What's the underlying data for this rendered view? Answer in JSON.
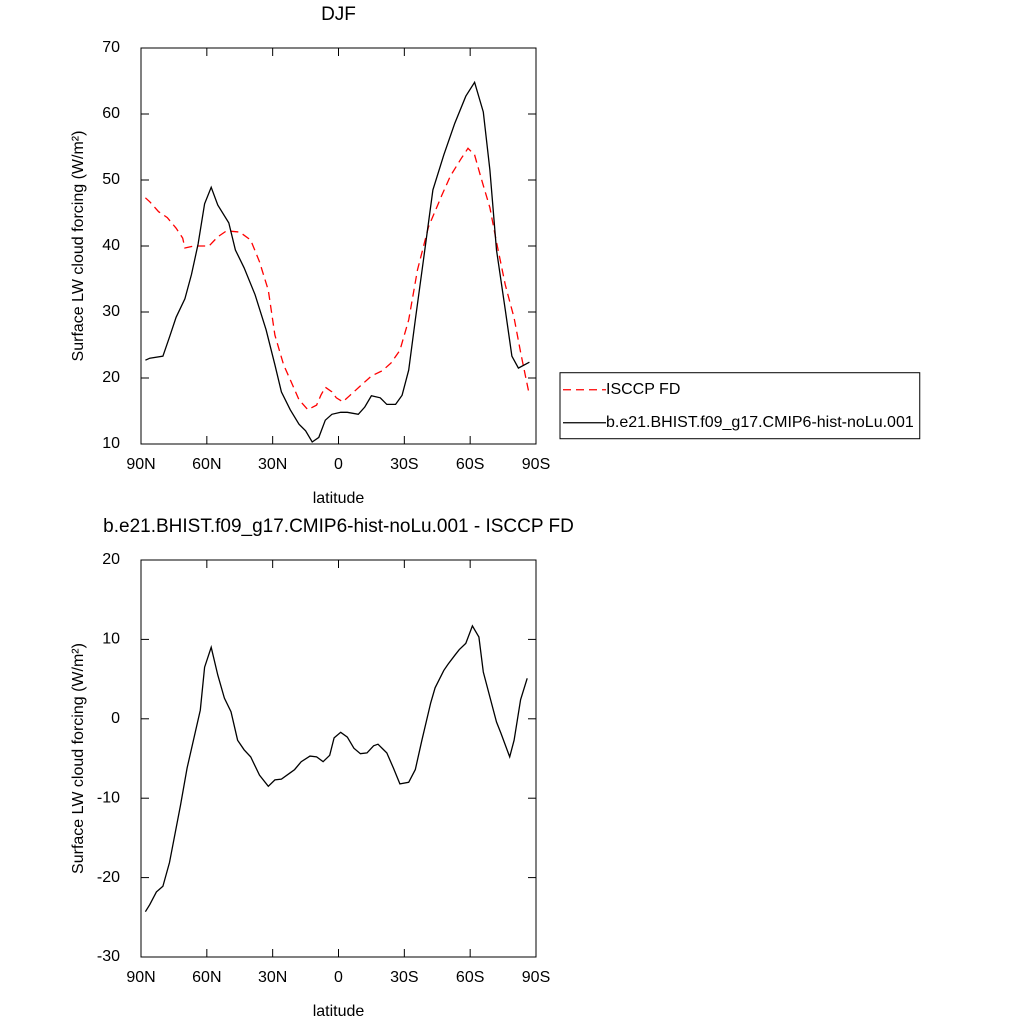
{
  "chart_data": [
    {
      "type": "line",
      "title": "DJF",
      "xlabel": "latitude",
      "ylabel": "Surface LW cloud forcing (W/m²)",
      "xlim": [
        90,
        -90
      ],
      "xticks": [
        {
          "value": 90,
          "label": "90N"
        },
        {
          "value": 60,
          "label": "60N"
        },
        {
          "value": 30,
          "label": "30N"
        },
        0,
        {
          "value": -30,
          "label": "30S"
        },
        {
          "value": -60,
          "label": "60S"
        },
        {
          "value": -90,
          "label": "90S"
        }
      ],
      "ylim": [
        10,
        70
      ],
      "yticks": [
        10,
        20,
        30,
        40,
        50,
        60,
        70
      ],
      "legend": "right",
      "series": [
        {
          "name": "ISCCP FD",
          "color": "#ff0000",
          "dashed": true,
          "x": [
            88,
            86,
            82,
            78,
            74,
            71,
            70,
            66,
            59,
            55,
            51,
            45,
            40,
            36,
            32,
            29,
            25,
            21,
            18,
            14,
            10,
            8,
            6,
            3,
            1,
            -2,
            -5,
            -10,
            -15,
            -20,
            -24,
            -28,
            -32,
            -36,
            -41,
            -47,
            -51,
            -56,
            -59,
            -62,
            -65,
            -69,
            -72,
            -76,
            -80,
            -83,
            -87
          ],
          "values": [
            47.3,
            46.7,
            45.2,
            44.3,
            42.7,
            41.2,
            39.7,
            40,
            40,
            41.4,
            42.3,
            42.1,
            40.9,
            37.6,
            33.3,
            26.5,
            22,
            19,
            16.7,
            15.2,
            15.9,
            17.4,
            18.6,
            17.9,
            17,
            16.4,
            17.3,
            18.8,
            20.3,
            21.1,
            22.3,
            24.2,
            28.8,
            36.4,
            42.9,
            47.6,
            50.6,
            53.3,
            54.8,
            53.8,
            50.3,
            45.8,
            40.6,
            34.1,
            29.1,
            23.9,
            17.4
          ]
        },
        {
          "name": "b.e21.BHIST.f09_g17.CMIP6-hist-noLu.001",
          "color": "#000000",
          "dashed": false,
          "x": [
            88,
            86,
            80,
            77,
            74,
            70,
            67,
            64,
            61,
            58,
            55,
            50,
            47,
            43,
            38,
            33,
            29,
            26,
            22,
            18,
            15,
            12,
            9,
            6,
            3,
            -1,
            -4,
            -9,
            -12,
            -15,
            -19,
            -22,
            -26,
            -29,
            -32,
            -35,
            -39,
            -43,
            -48,
            -53,
            -58,
            -62,
            -66,
            -69,
            -72,
            -76,
            -79,
            -82,
            -87
          ],
          "values": [
            22.7,
            23,
            23.3,
            26.2,
            29.2,
            32,
            35.7,
            40.3,
            46.4,
            48.9,
            46.2,
            43.5,
            39.4,
            36.7,
            32.6,
            27.3,
            22,
            17.9,
            15.2,
            13,
            12,
            10.3,
            11,
            13.6,
            14.5,
            14.8,
            14.8,
            14.5,
            15.6,
            17.3,
            17,
            16,
            16,
            17.4,
            21.2,
            28.8,
            38.6,
            48.5,
            53.8,
            58.6,
            62.7,
            64.8,
            60.3,
            51.5,
            39.4,
            30.3,
            23.3,
            21.5,
            22.4
          ]
        }
      ]
    },
    {
      "type": "line",
      "title": "b.e21.BHIST.f09_g17.CMIP6-hist-noLu.001 - ISCCP FD",
      "xlabel": "latitude",
      "ylabel": "Surface LW cloud forcing (W/m²)",
      "xlim": [
        90,
        -90
      ],
      "xticks": [
        {
          "value": 90,
          "label": "90N"
        },
        {
          "value": 60,
          "label": "60N"
        },
        {
          "value": 30,
          "label": "30N"
        },
        0,
        {
          "value": -30,
          "label": "30S"
        },
        {
          "value": -60,
          "label": "60S"
        },
        {
          "value": -90,
          "label": "90S"
        }
      ],
      "ylim": [
        -30,
        20
      ],
      "yticks": [
        -30,
        -20,
        -10,
        0,
        10,
        20
      ],
      "series": [
        {
          "color": "#000000",
          "dashed": false,
          "x": [
            88,
            86,
            83,
            80,
            77,
            72,
            69,
            63,
            61,
            58,
            55,
            52,
            49,
            46,
            43,
            40,
            36,
            32,
            29,
            26,
            22,
            20,
            17,
            13,
            10,
            7,
            4,
            2,
            -1,
            -4,
            -7,
            -10,
            -13,
            -16,
            -18,
            -22,
            -25,
            -28,
            -32,
            -35,
            -38,
            -42,
            -44,
            -48,
            -50,
            -53,
            -55,
            -58,
            -61,
            -64,
            -66,
            -72,
            -74,
            -78,
            -80,
            -83,
            -86
          ],
          "values": [
            -24.3,
            -23.4,
            -21.8,
            -21.1,
            -18.1,
            -10.9,
            -6.2,
            1.1,
            6.5,
            9,
            5.5,
            2.6,
            0.9,
            -2.7,
            -3.9,
            -4.8,
            -7.1,
            -8.5,
            -7.7,
            -7.6,
            -6.8,
            -6.4,
            -5.4,
            -4.7,
            -4.8,
            -5.4,
            -4.6,
            -2.4,
            -1.7,
            -2.3,
            -3.7,
            -4.4,
            -4.3,
            -3.4,
            -3.2,
            -4.3,
            -6.2,
            -8.2,
            -8,
            -6.4,
            -2.7,
            2,
            3.9,
            6.1,
            6.9,
            8,
            8.7,
            9.5,
            11.7,
            10.3,
            5.9,
            -0.4,
            -1.8,
            -4.8,
            -2.7,
            2.4,
            5.1
          ]
        }
      ]
    }
  ]
}
